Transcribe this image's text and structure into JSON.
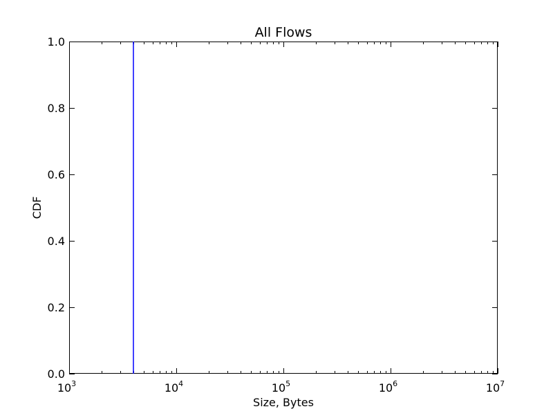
{
  "chart_data": {
    "type": "line",
    "title": "All Flows",
    "xlabel": "Size, Bytes",
    "ylabel": "CDF",
    "x_scale": "log",
    "xlim": [
      1000,
      10000000
    ],
    "ylim": [
      0.0,
      1.0
    ],
    "x_ticks": [
      {
        "value": 1000,
        "base": "10",
        "exponent": "3"
      },
      {
        "value": 10000,
        "base": "10",
        "exponent": "4"
      },
      {
        "value": 100000,
        "base": "10",
        "exponent": "5"
      },
      {
        "value": 1000000,
        "base": "10",
        "exponent": "6"
      },
      {
        "value": 10000000,
        "base": "10",
        "exponent": "7"
      }
    ],
    "y_ticks": [
      {
        "value": 0.0,
        "label": "0.0"
      },
      {
        "value": 0.2,
        "label": "0.2"
      },
      {
        "value": 0.4,
        "label": "0.4"
      },
      {
        "value": 0.6,
        "label": "0.6"
      },
      {
        "value": 0.8,
        "label": "0.8"
      },
      {
        "value": 1.0,
        "label": "1.0"
      }
    ],
    "grid": false,
    "series": [
      {
        "color": "#0000ff",
        "x": [
          4000,
          4000
        ],
        "y": [
          0.0,
          1.0
        ]
      }
    ]
  }
}
